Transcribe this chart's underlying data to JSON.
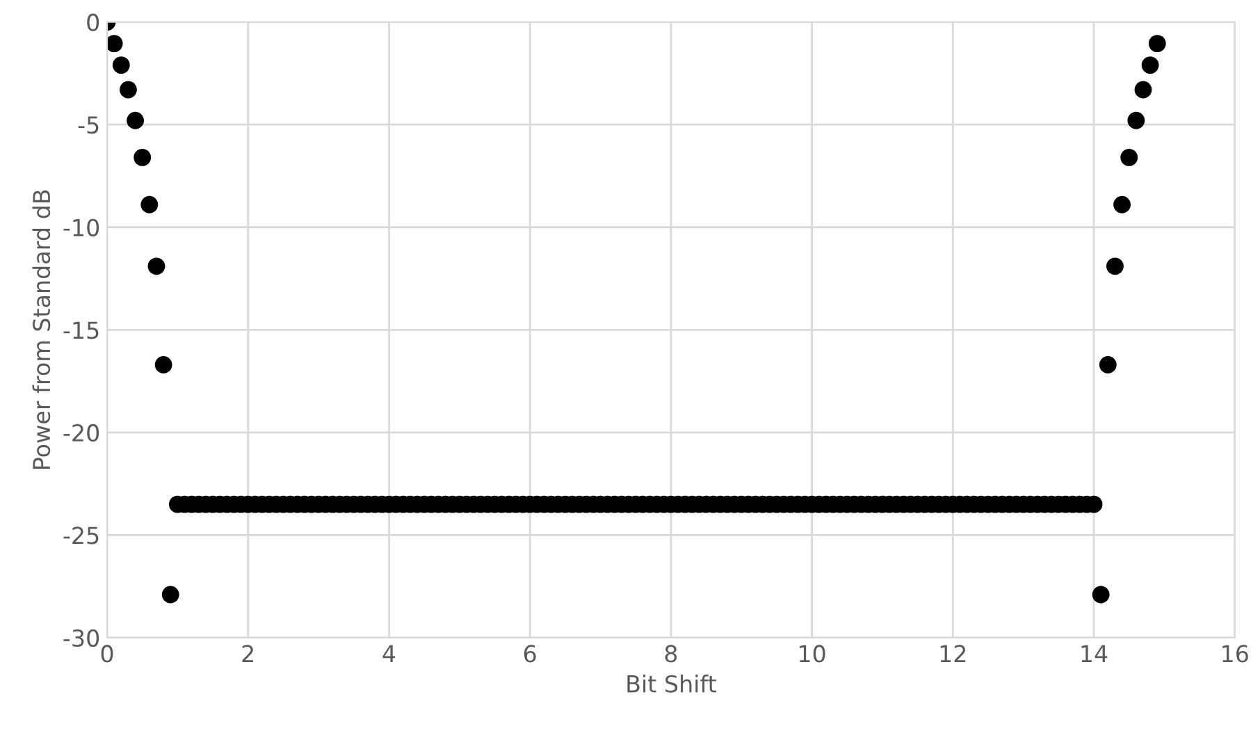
{
  "chart_data": {
    "type": "scatter",
    "xlabel": "Bit Shift",
    "ylabel": "Power from Standard dB",
    "xlim": [
      0,
      16
    ],
    "xticks": [
      0,
      2,
      4,
      6,
      8,
      10,
      12,
      14,
      16
    ],
    "ylim": [
      -30,
      0
    ],
    "yticks": [
      -30,
      -25,
      -20,
      -15,
      -10,
      -5,
      0
    ],
    "grid": true,
    "marker": "circle",
    "series": [
      {
        "color": "#000000",
        "x": [
          0,
          0.1,
          0.2,
          0.3,
          0.4,
          0.5,
          0.6,
          0.7,
          0.8,
          0.9
        ],
        "values": [
          0,
          -1.05,
          -2.1,
          -3.3,
          -4.8,
          -6.6,
          -8.9,
          -11.9,
          -16.7,
          -27.9
        ]
      },
      {
        "color": "#000000",
        "x": [
          1.0,
          1.1,
          1.2,
          1.3,
          1.4,
          1.5,
          1.6,
          1.7,
          1.8,
          1.9,
          2.0,
          2.1,
          2.2,
          2.3,
          2.4,
          2.5,
          2.6,
          2.7,
          2.8,
          2.9,
          3.0,
          3.1,
          3.2,
          3.3,
          3.4,
          3.5,
          3.6,
          3.7,
          3.8,
          3.9,
          4.0,
          4.1,
          4.2,
          4.3,
          4.4,
          4.5,
          4.6,
          4.7,
          4.8,
          4.9,
          5.0,
          5.1,
          5.2,
          5.3,
          5.4,
          5.5,
          5.6,
          5.7,
          5.8,
          5.9,
          6.0,
          6.1,
          6.2,
          6.3,
          6.4,
          6.5,
          6.6,
          6.7,
          6.8,
          6.9,
          7.0,
          7.1,
          7.2,
          7.3,
          7.4,
          7.5,
          7.6,
          7.7,
          7.8,
          7.9,
          8.0,
          8.1,
          8.2,
          8.3,
          8.4,
          8.5,
          8.6,
          8.7,
          8.8,
          8.9,
          9.0,
          9.1,
          9.2,
          9.3,
          9.4,
          9.5,
          9.6,
          9.7,
          9.8,
          9.9,
          10.0,
          10.1,
          10.2,
          10.3,
          10.4,
          10.5,
          10.6,
          10.7,
          10.8,
          10.9,
          11.0,
          11.1,
          11.2,
          11.3,
          11.4,
          11.5,
          11.6,
          11.7,
          11.8,
          11.9,
          12.0,
          12.1,
          12.2,
          12.3,
          12.4,
          12.5,
          12.6,
          12.7,
          12.8,
          12.9,
          13.0,
          13.1,
          13.2,
          13.3,
          13.4,
          13.5,
          13.6,
          13.7,
          13.8,
          13.9,
          14.0
        ],
        "values": [
          -23.5,
          -23.5,
          -23.5,
          -23.5,
          -23.5,
          -23.5,
          -23.5,
          -23.5,
          -23.5,
          -23.5,
          -23.5,
          -23.5,
          -23.5,
          -23.5,
          -23.5,
          -23.5,
          -23.5,
          -23.5,
          -23.5,
          -23.5,
          -23.5,
          -23.5,
          -23.5,
          -23.5,
          -23.5,
          -23.5,
          -23.5,
          -23.5,
          -23.5,
          -23.5,
          -23.5,
          -23.5,
          -23.5,
          -23.5,
          -23.5,
          -23.5,
          -23.5,
          -23.5,
          -23.5,
          -23.5,
          -23.5,
          -23.5,
          -23.5,
          -23.5,
          -23.5,
          -23.5,
          -23.5,
          -23.5,
          -23.5,
          -23.5,
          -23.5,
          -23.5,
          -23.5,
          -23.5,
          -23.5,
          -23.5,
          -23.5,
          -23.5,
          -23.5,
          -23.5,
          -23.5,
          -23.5,
          -23.5,
          -23.5,
          -23.5,
          -23.5,
          -23.5,
          -23.5,
          -23.5,
          -23.5,
          -23.5,
          -23.5,
          -23.5,
          -23.5,
          -23.5,
          -23.5,
          -23.5,
          -23.5,
          -23.5,
          -23.5,
          -23.5,
          -23.5,
          -23.5,
          -23.5,
          -23.5,
          -23.5,
          -23.5,
          -23.5,
          -23.5,
          -23.5,
          -23.5,
          -23.5,
          -23.5,
          -23.5,
          -23.5,
          -23.5,
          -23.5,
          -23.5,
          -23.5,
          -23.5,
          -23.5,
          -23.5,
          -23.5,
          -23.5,
          -23.5,
          -23.5,
          -23.5,
          -23.5,
          -23.5,
          -23.5,
          -23.5,
          -23.5,
          -23.5,
          -23.5,
          -23.5,
          -23.5,
          -23.5,
          -23.5,
          -23.5,
          -23.5,
          -23.5,
          -23.5,
          -23.5,
          -23.5,
          -23.5,
          -23.5,
          -23.5,
          -23.5,
          -23.5,
          -23.5,
          -23.5
        ]
      },
      {
        "color": "#000000",
        "x": [
          14.1,
          14.2,
          14.3,
          14.4,
          14.5,
          14.6,
          14.7,
          14.8,
          14.9
        ],
        "values": [
          -27.9,
          -16.7,
          -11.9,
          -8.9,
          -6.6,
          -4.8,
          -3.3,
          -2.1,
          -1.05
        ]
      }
    ]
  }
}
